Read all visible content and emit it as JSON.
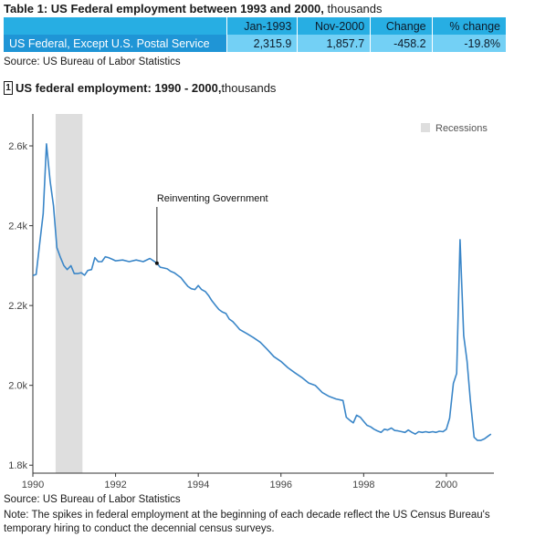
{
  "table": {
    "title_bold": "Table 1: US Federal employment between 1993 and 2000,",
    "title_unit": " thousands",
    "headers": [
      "",
      "Jan-1993",
      "Nov-2000",
      "Change",
      "% change"
    ],
    "row": {
      "label": "US Federal, Except U.S. Postal Service",
      "jan1993": "2,315.9",
      "nov2000": "1,857.7",
      "change": "-458.2",
      "pct_change": "-19.8%"
    },
    "source": "Source: US Bureau of Labor Statistics"
  },
  "chart_header": {
    "badge": "1",
    "title_bold": "US federal employment: 1990 - 2000,",
    "title_unit": " thousands"
  },
  "chart_data": {
    "type": "line",
    "title": "US federal employment: 1990 - 2000, thousands",
    "xlabel": "",
    "ylabel": "",
    "xlim": [
      1990,
      2001.15
    ],
    "ylim": [
      1780,
      2680
    ],
    "xticks": [
      1990,
      1992,
      1994,
      1996,
      1998,
      2000
    ],
    "xtick_labels": [
      "1990",
      "1992",
      "1994",
      "1996",
      "1998",
      "2000"
    ],
    "yticks": [
      1800,
      2000,
      2200,
      2400,
      2600
    ],
    "ytick_labels": [
      "1.8k",
      "2.0k",
      "2.2k",
      "2.4k",
      "2.6k"
    ],
    "grid": false,
    "legend": {
      "position": "top-right",
      "entries": [
        "Recessions"
      ]
    },
    "recession_shading": [
      {
        "start": 1990.55,
        "end": 1991.2,
        "color": "#dedede"
      }
    ],
    "annotation": {
      "text": "Reinventing Government",
      "x": 1993.0,
      "y": 2306
    },
    "series": [
      {
        "color": "#3a86c8",
        "x": [
          1990.0,
          1990.08,
          1990.17,
          1990.25,
          1990.33,
          1990.42,
          1990.5,
          1990.58,
          1990.67,
          1990.75,
          1990.83,
          1990.92,
          1991.0,
          1991.08,
          1991.17,
          1991.25,
          1991.33,
          1991.42,
          1991.5,
          1991.58,
          1991.67,
          1991.75,
          1991.83,
          1991.92,
          1992.0,
          1992.17,
          1992.33,
          1992.5,
          1992.67,
          1992.83,
          1993.0,
          1993.08,
          1993.17,
          1993.25,
          1993.33,
          1993.42,
          1993.5,
          1993.58,
          1993.67,
          1993.75,
          1993.83,
          1993.92,
          1994.0,
          1994.08,
          1994.17,
          1994.25,
          1994.33,
          1994.42,
          1994.5,
          1994.58,
          1994.67,
          1994.75,
          1994.83,
          1994.92,
          1995.0,
          1995.17,
          1995.33,
          1995.5,
          1995.67,
          1995.83,
          1996.0,
          1996.17,
          1996.33,
          1996.5,
          1996.67,
          1996.83,
          1997.0,
          1997.17,
          1997.33,
          1997.5,
          1997.58,
          1997.67,
          1997.75,
          1997.83,
          1997.92,
          1998.0,
          1998.08,
          1998.17,
          1998.25,
          1998.33,
          1998.42,
          1998.5,
          1998.58,
          1998.67,
          1998.75,
          1998.83,
          1998.92,
          1999.0,
          1999.08,
          1999.17,
          1999.25,
          1999.33,
          1999.42,
          1999.5,
          1999.58,
          1999.67,
          1999.75,
          1999.83,
          1999.92,
          2000.0,
          2000.08,
          2000.17,
          2000.25,
          2000.33,
          2000.42,
          2000.5,
          2000.58,
          2000.67,
          2000.75,
          2000.83,
          2000.92,
          2001.0,
          2001.08
        ],
        "y": [
          2275,
          2278,
          2360,
          2430,
          2605,
          2510,
          2450,
          2345,
          2320,
          2300,
          2290,
          2300,
          2280,
          2280,
          2282,
          2276,
          2288,
          2290,
          2320,
          2310,
          2310,
          2322,
          2320,
          2316,
          2312,
          2314,
          2310,
          2314,
          2310,
          2318,
          2306,
          2296,
          2294,
          2292,
          2286,
          2282,
          2276,
          2270,
          2258,
          2248,
          2242,
          2240,
          2250,
          2240,
          2235,
          2225,
          2212,
          2200,
          2190,
          2184,
          2180,
          2166,
          2160,
          2150,
          2140,
          2130,
          2120,
          2108,
          2090,
          2072,
          2060,
          2044,
          2032,
          2020,
          2006,
          2000,
          1982,
          1972,
          1966,
          1962,
          1920,
          1912,
          1906,
          1925,
          1920,
          1910,
          1900,
          1896,
          1890,
          1886,
          1882,
          1890,
          1888,
          1893,
          1887,
          1886,
          1884,
          1882,
          1888,
          1882,
          1878,
          1884,
          1882,
          1884,
          1882,
          1884,
          1882,
          1885,
          1884,
          1890,
          1918,
          2005,
          2030,
          2365,
          2125,
          2060,
          1962,
          1870,
          1862,
          1862,
          1866,
          1872,
          1878
        ]
      }
    ]
  },
  "footer": {
    "source": "Source: US Bureau of Labor Statistics",
    "note": "Note: The spikes in federal employment at the beginning of each decade reflect the US Census Bureau's temporary hiring to conduct the decennial census surveys."
  }
}
